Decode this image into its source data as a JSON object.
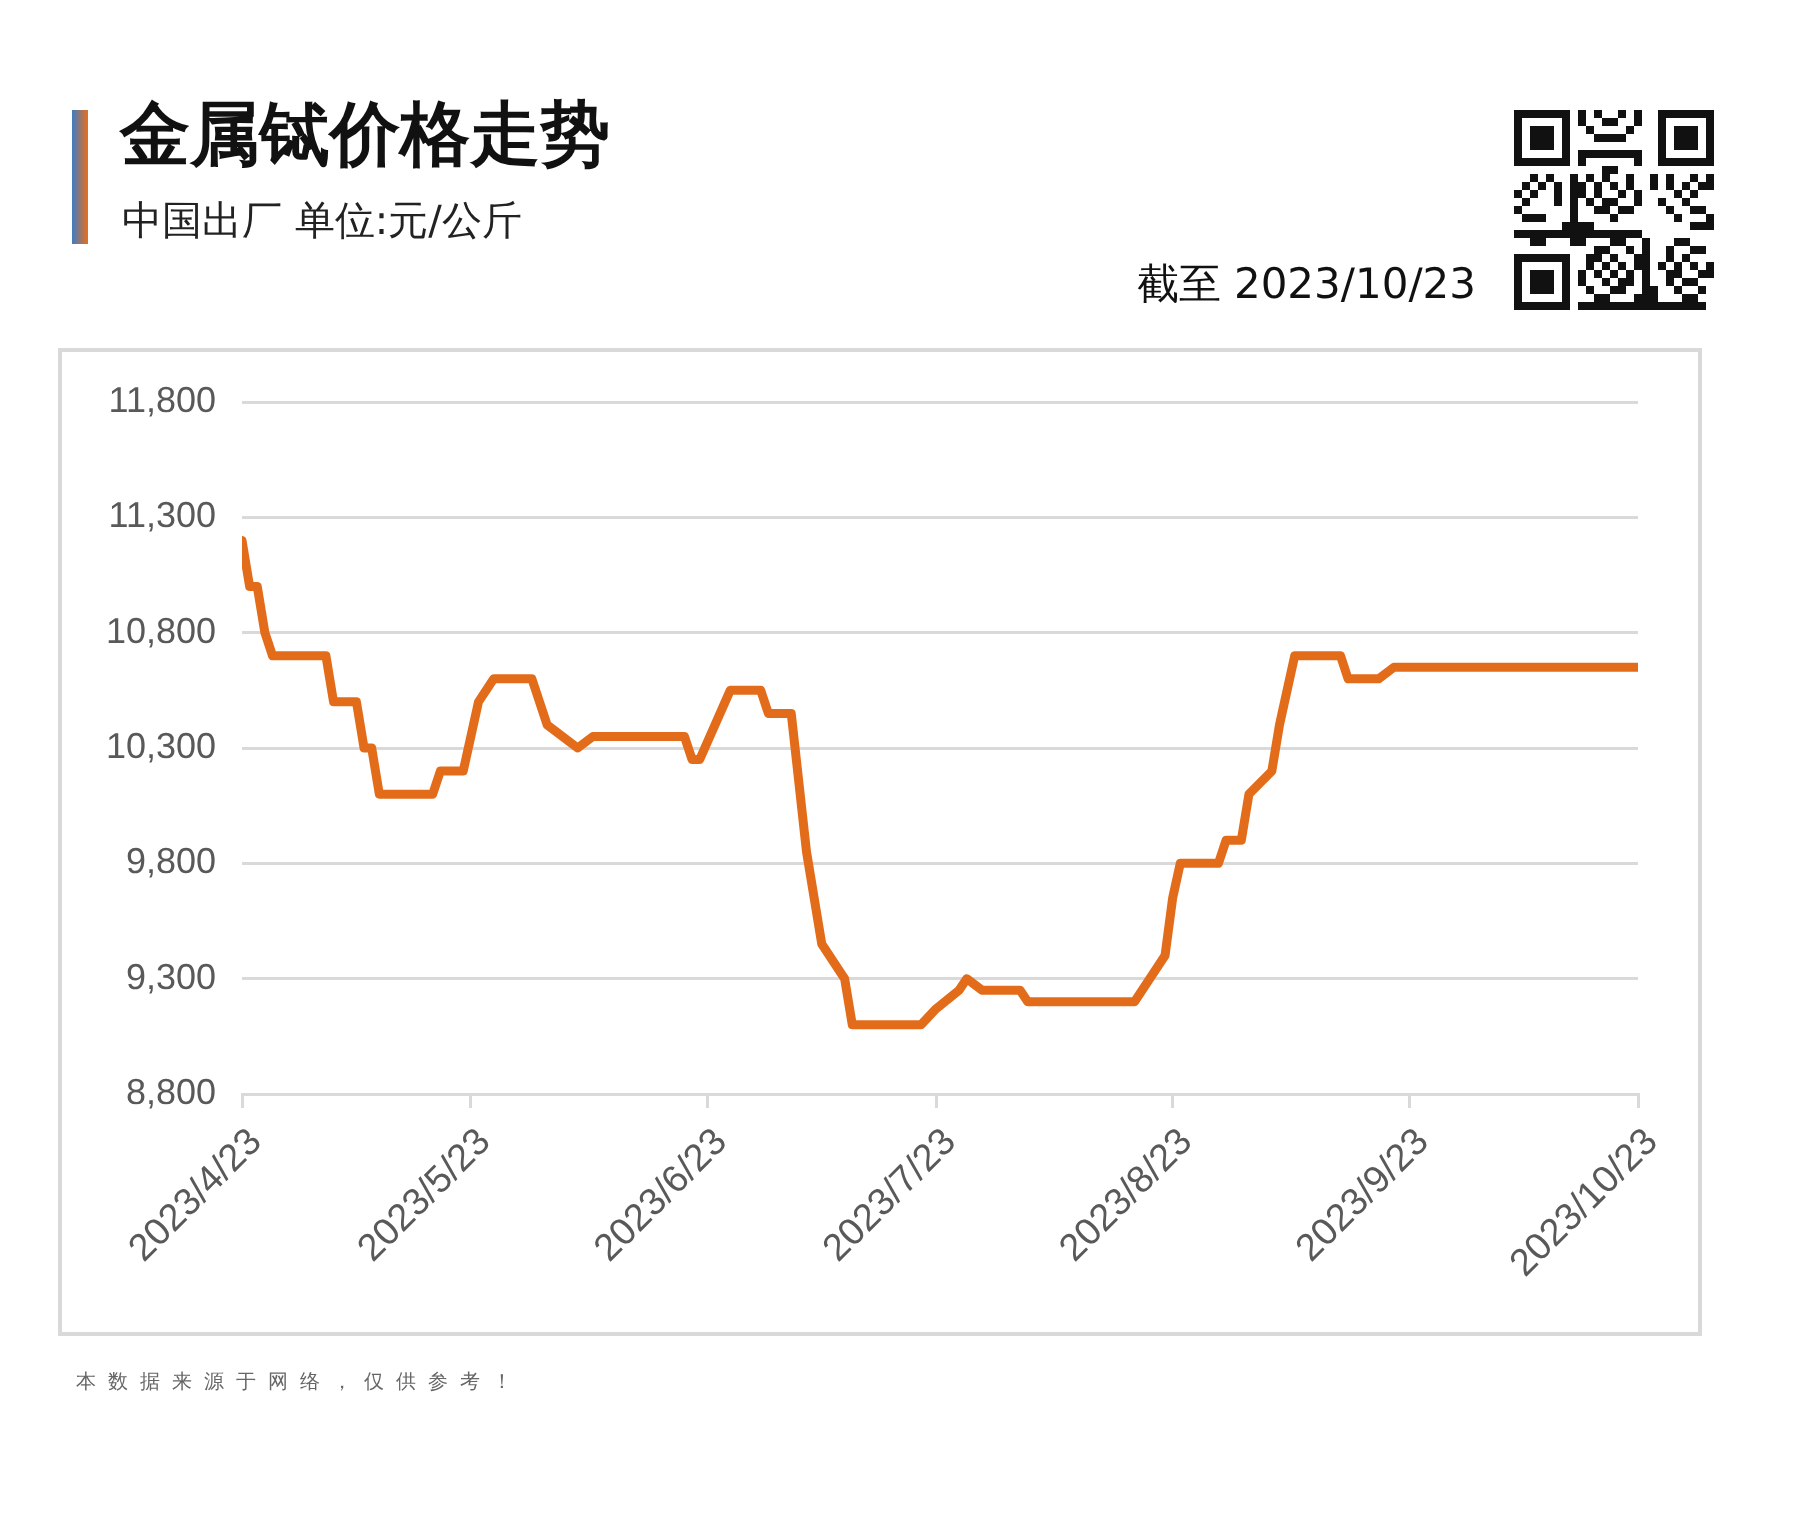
{
  "chart_data": {
    "type": "line",
    "title": "金属铽价格走势",
    "subtitle": "中国出厂 单位:元/公斤",
    "annotations": [
      "截至 2023/10/23",
      "本数据来源于网络，仅供参考！"
    ],
    "x": [
      "2023-04-23",
      "2023-04-24",
      "2023-04-25",
      "2023-04-26",
      "2023-04-27",
      "2023-05-04",
      "2023-05-05",
      "2023-05-08",
      "2023-05-09",
      "2023-05-10",
      "2023-05-11",
      "2023-05-18",
      "2023-05-19",
      "2023-05-22",
      "2023-05-24",
      "2023-05-26",
      "2023-05-31",
      "2023-06-01",
      "2023-06-02",
      "2023-06-06",
      "2023-06-08",
      "2023-06-20",
      "2023-06-21",
      "2023-06-22",
      "2023-06-26",
      "2023-06-30",
      "2023-07-01",
      "2023-07-04",
      "2023-07-06",
      "2023-07-08",
      "2023-07-11",
      "2023-07-12",
      "2023-07-21",
      "2023-07-23",
      "2023-07-26",
      "2023-07-27",
      "2023-07-29",
      "2023-08-03",
      "2023-08-04",
      "2023-08-18",
      "2023-08-22",
      "2023-08-23",
      "2023-08-24",
      "2023-08-29",
      "2023-08-30",
      "2023-09-01",
      "2023-09-02",
      "2023-09-05",
      "2023-09-06",
      "2023-09-08",
      "2023-09-14",
      "2023-09-15",
      "2023-09-19",
      "2023-09-21",
      "2023-10-23"
    ],
    "series": [
      {
        "color": "#e36c1a",
        "values": [
          11200,
          11000,
          11000,
          10800,
          10700,
          10700,
          10500,
          10500,
          10300,
          10300,
          10100,
          10100,
          10200,
          10200,
          10500,
          10600,
          10600,
          10500,
          10400,
          10300,
          10350,
          10350,
          10250,
          10250,
          10550,
          10550,
          10450,
          10450,
          9850,
          9450,
          9300,
          9100,
          9100,
          9170,
          9250,
          9300,
          9250,
          9250,
          9200,
          9200,
          9400,
          9650,
          9800,
          9800,
          9900,
          9900,
          10100,
          10200,
          10400,
          10700,
          10700,
          10600,
          10600,
          10650,
          10650
        ]
      }
    ],
    "xlim": [
      "2023-04-23",
      "2023-10-23"
    ],
    "xticks": [
      {
        "value": "2023-04-23",
        "label": "2023/4/23"
      },
      {
        "value": "2023-05-23",
        "label": "2023/5/23"
      },
      {
        "value": "2023-06-23",
        "label": "2023/6/23"
      },
      {
        "value": "2023-07-23",
        "label": "2023/7/23"
      },
      {
        "value": "2023-08-23",
        "label": "2023/8/23"
      },
      {
        "value": "2023-09-23",
        "label": "2023/9/23"
      },
      {
        "value": "2023-10-23",
        "label": "2023/10/23"
      }
    ],
    "ylim": [
      8800,
      11800
    ],
    "yticks": [
      {
        "value": 8800,
        "label": "8,800"
      },
      {
        "value": 9300,
        "label": "9,300"
      },
      {
        "value": 9800,
        "label": "9,800"
      },
      {
        "value": 10300,
        "label": "10,300"
      },
      {
        "value": 10800,
        "label": "10,800"
      },
      {
        "value": 11300,
        "label": "11,300"
      },
      {
        "value": 11800,
        "label": "11,800"
      }
    ],
    "grid": "y",
    "marker": "none",
    "line_style": "solid"
  }
}
